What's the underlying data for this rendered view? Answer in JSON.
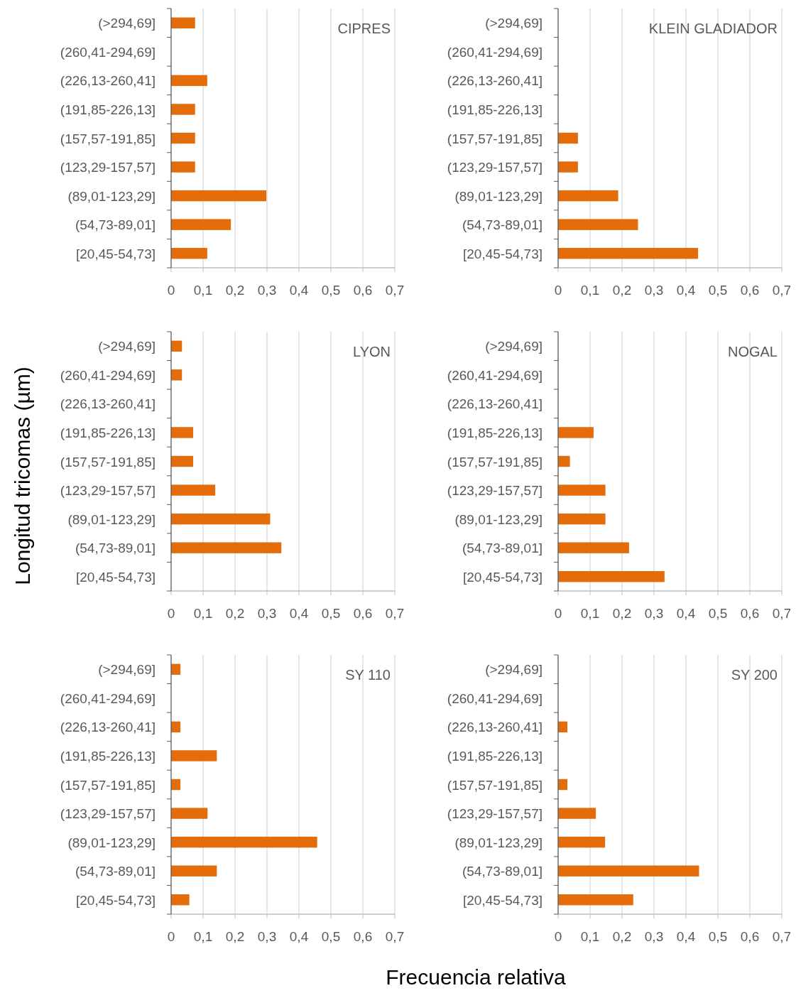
{
  "chart_data": [
    {
      "type": "bar",
      "orientation": "horizontal",
      "title": "CIPRES",
      "xlabel": "Frecuencia relativa",
      "ylabel": "Longitud tricomas (µm)",
      "categories": [
        "(>294,69]",
        "(260,41-294,69]",
        "(226,13-260,41]",
        "(191,85-226,13]",
        "(157,57-191,85]",
        "(123,29-157,57]",
        "(89,01-123,29]",
        "(54,73-89,01]",
        "[20,45-54,73]"
      ],
      "values": [
        0.075,
        0,
        0.113,
        0.075,
        0.075,
        0.075,
        0.298,
        0.187,
        0.113
      ],
      "color": "#e46c0a",
      "xlim": [
        0,
        0.7
      ],
      "xticks": [
        {
          "value": 0,
          "label": "0"
        },
        {
          "value": 0.1,
          "label": "0,1"
        },
        {
          "value": 0.2,
          "label": "0,2"
        },
        {
          "value": 0.3,
          "label": "0,3"
        },
        {
          "value": 0.4,
          "label": "0,4"
        },
        {
          "value": 0.5,
          "label": "0,5"
        },
        {
          "value": 0.6,
          "label": "0,6"
        },
        {
          "value": 0.7,
          "label": "0,7"
        }
      ],
      "grid": "x"
    },
    {
      "type": "bar",
      "orientation": "horizontal",
      "title": "KLEIN GLADIADOR",
      "categories": [
        "(>294,69]",
        "(260,41-294,69]",
        "(226,13-260,41]",
        "(191,85-226,13]",
        "(157,57-191,85]",
        "(123,29-157,57]",
        "(89,01-123,29]",
        "(54,73-89,01]",
        "[20,45-54,73]"
      ],
      "values": [
        0,
        0,
        0,
        0,
        0.062,
        0.062,
        0.188,
        0.25,
        0.438
      ],
      "color": "#e46c0a",
      "xlim": [
        0,
        0.7
      ],
      "xticks": [
        {
          "value": 0,
          "label": "0"
        },
        {
          "value": 0.1,
          "label": "0,1"
        },
        {
          "value": 0.2,
          "label": "0,2"
        },
        {
          "value": 0.3,
          "label": "0,3"
        },
        {
          "value": 0.4,
          "label": "0,4"
        },
        {
          "value": 0.5,
          "label": "0,5"
        },
        {
          "value": 0.6,
          "label": "0,6"
        },
        {
          "value": 0.7,
          "label": "0,7"
        }
      ],
      "grid": "x"
    },
    {
      "type": "bar",
      "orientation": "horizontal",
      "title": "LYON",
      "categories": [
        "(>294,69]",
        "(260,41-294,69]",
        "(226,13-260,41]",
        "(191,85-226,13]",
        "(157,57-191,85]",
        "(123,29-157,57]",
        "(89,01-123,29]",
        "(54,73-89,01]",
        "[20,45-54,73]"
      ],
      "values": [
        0.034,
        0.034,
        0,
        0.069,
        0.069,
        0.138,
        0.31,
        0.345,
        0
      ],
      "color": "#e46c0a",
      "xlim": [
        0,
        0.7
      ],
      "xticks": [
        {
          "value": 0,
          "label": "0"
        },
        {
          "value": 0.1,
          "label": "0,1"
        },
        {
          "value": 0.2,
          "label": "0,2"
        },
        {
          "value": 0.3,
          "label": "0,3"
        },
        {
          "value": 0.4,
          "label": "0,4"
        },
        {
          "value": 0.5,
          "label": "0,5"
        },
        {
          "value": 0.6,
          "label": "0,6"
        },
        {
          "value": 0.7,
          "label": "0,7"
        }
      ],
      "grid": "x"
    },
    {
      "type": "bar",
      "orientation": "horizontal",
      "title": "NOGAL",
      "categories": [
        "(>294,69]",
        "(260,41-294,69]",
        "(226,13-260,41]",
        "(191,85-226,13]",
        "(157,57-191,85]",
        "(123,29-157,57]",
        "(89,01-123,29]",
        "(54,73-89,01]",
        "[20,45-54,73]"
      ],
      "values": [
        0,
        0,
        0,
        0.111,
        0.037,
        0.148,
        0.148,
        0.222,
        0.333
      ],
      "color": "#e46c0a",
      "xlim": [
        0,
        0.7
      ],
      "xticks": [
        {
          "value": 0,
          "label": "0"
        },
        {
          "value": 0.1,
          "label": "0,1"
        },
        {
          "value": 0.2,
          "label": "0,2"
        },
        {
          "value": 0.3,
          "label": "0,3"
        },
        {
          "value": 0.4,
          "label": "0,4"
        },
        {
          "value": 0.5,
          "label": "0,5"
        },
        {
          "value": 0.6,
          "label": "0,6"
        },
        {
          "value": 0.7,
          "label": "0,7"
        }
      ],
      "grid": "x"
    },
    {
      "type": "bar",
      "orientation": "horizontal",
      "title": "SY 110",
      "categories": [
        "(>294,69]",
        "(260,41-294,69]",
        "(226,13-260,41]",
        "(191,85-226,13]",
        "(157,57-191,85]",
        "(123,29-157,57]",
        "(89,01-123,29]",
        "(54,73-89,01]",
        "[20,45-54,73]"
      ],
      "values": [
        0.029,
        0,
        0.029,
        0.143,
        0.029,
        0.114,
        0.457,
        0.143,
        0.057
      ],
      "color": "#e46c0a",
      "xlim": [
        0,
        0.7
      ],
      "xticks": [
        {
          "value": 0,
          "label": "0"
        },
        {
          "value": 0.1,
          "label": "0,1"
        },
        {
          "value": 0.2,
          "label": "0,2"
        },
        {
          "value": 0.3,
          "label": "0,3"
        },
        {
          "value": 0.4,
          "label": "0,4"
        },
        {
          "value": 0.5,
          "label": "0,5"
        },
        {
          "value": 0.6,
          "label": "0,6"
        },
        {
          "value": 0.7,
          "label": "0,7"
        }
      ],
      "grid": "x"
    },
    {
      "type": "bar",
      "orientation": "horizontal",
      "title": "SY 200",
      "categories": [
        "(>294,69]",
        "(260,41-294,69]",
        "(226,13-260,41]",
        "(191,85-226,13]",
        "(157,57-191,85]",
        "(123,29-157,57]",
        "(89,01-123,29]",
        "(54,73-89,01]",
        "[20,45-54,73]"
      ],
      "values": [
        0,
        0,
        0.029,
        0,
        0.029,
        0.118,
        0.147,
        0.441,
        0.235
      ],
      "color": "#e46c0a",
      "xlim": [
        0,
        0.7
      ],
      "xticks": [
        {
          "value": 0,
          "label": "0"
        },
        {
          "value": 0.1,
          "label": "0,1"
        },
        {
          "value": 0.2,
          "label": "0,2"
        },
        {
          "value": 0.3,
          "label": "0,3"
        },
        {
          "value": 0.4,
          "label": "0,4"
        },
        {
          "value": 0.5,
          "label": "0,5"
        },
        {
          "value": 0.6,
          "label": "0,6"
        },
        {
          "value": 0.7,
          "label": "0,7"
        }
      ],
      "grid": "x"
    }
  ]
}
